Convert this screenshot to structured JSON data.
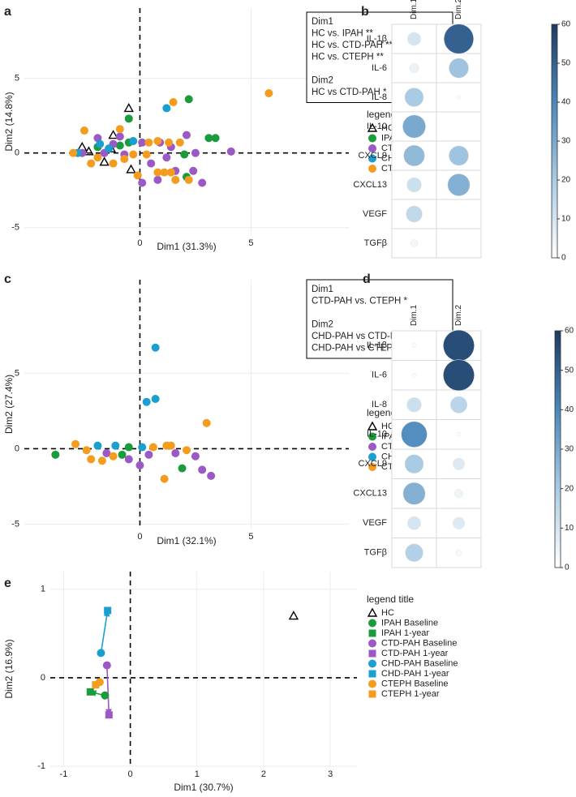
{
  "chart_data": [
    {
      "type": "scatter",
      "label": "a",
      "x_label": "Dim1 (31.3%)",
      "y_label": "Dim2 (14.8%)",
      "xlim": [
        -5.2,
        9.4
      ],
      "ylim": [
        -5.5,
        9.7
      ],
      "xticks": [
        0,
        5
      ],
      "yticks": [
        -5,
        0,
        5
      ],
      "grid": true,
      "zero_lines": true,
      "legend_title": "legend title",
      "legend": "right",
      "annotation": [
        [
          "Dim1",
          "HC vs. IPAH **",
          "HC vs. CTD-PAH ****",
          "HC vs. CTEPH **"
        ],
        [
          "Dim2",
          "HC vs CTD-PAH *"
        ]
      ],
      "series": [
        {
          "name": "HC",
          "color": "#000000",
          "marker": "triangle",
          "x": [
            -0.5,
            -2.6,
            -1.2,
            -1.6,
            -0.4,
            -2.3,
            -1.3
          ],
          "values": [
            3.0,
            0.4,
            1.2,
            -0.6,
            -1.1,
            0.1,
            0.3
          ]
        },
        {
          "name": "IPAH",
          "color": "#1a9c3c",
          "marker": "circle",
          "x": [
            2.2,
            3.1,
            3.4,
            -0.5,
            2.0,
            2.1,
            -0.9,
            -0.5,
            -1.9
          ],
          "values": [
            3.6,
            1.0,
            1.0,
            2.3,
            -0.1,
            -1.6,
            0.5,
            0.7,
            0.4
          ]
        },
        {
          "name": "CTD-PAH",
          "color": "#9b59c6",
          "marker": "circle",
          "x": [
            2.1,
            0.1,
            0.9,
            1.4,
            0.1,
            2.5,
            2.8,
            4.1,
            1.6,
            2.4,
            -0.7,
            -1.2,
            -1.6,
            -1.9,
            -2.6,
            0.5,
            0.8,
            1.2,
            -0.9
          ],
          "values": [
            1.2,
            0.7,
            0.7,
            0.4,
            -2.0,
            0,
            -2.0,
            0.1,
            -1.2,
            -1.2,
            -0.1,
            0.6,
            0,
            1,
            0,
            -0.7,
            -1.8,
            -0.3,
            1.1
          ]
        },
        {
          "name": "CHD-PAH",
          "color": "#1a9fd0",
          "marker": "circle",
          "x": [
            1.2,
            -1.8,
            -1.4,
            -2.8,
            -0.3
          ],
          "values": [
            3.0,
            0.6,
            0.3,
            0,
            0.8
          ]
        },
        {
          "name": "CTEPH",
          "color": "#f39c1e",
          "marker": "circle",
          "x": [
            5.8,
            1.5,
            -2.5,
            -3,
            -0.9,
            0.4,
            0.8,
            1.3,
            1.8,
            0.8,
            1.1,
            1.4,
            1.6,
            2.2,
            -0.1,
            -0.3,
            0.3,
            -1.9,
            -2.2,
            -1.2,
            -0.7
          ],
          "values": [
            4.0,
            3.4,
            1.5,
            0,
            1.6,
            0.7,
            0.8,
            0.7,
            0.7,
            -1.3,
            -1.3,
            -1.3,
            -1.8,
            -1.8,
            -1.5,
            -0.1,
            -0.1,
            -0.3,
            -0.7,
            -0.7,
            -0.4
          ]
        }
      ]
    },
    {
      "type": "heatmap",
      "label": "b",
      "rows": [
        "IL-1β",
        "IL-6",
        "IL-8",
        "IL-10",
        "CXCL9",
        "CXCL13",
        "VEGF",
        "TGFβ"
      ],
      "columns": [
        "Dim.1",
        "Dim.2"
      ],
      "values": [
        [
          10,
          50
        ],
        [
          5,
          22
        ],
        [
          20,
          1
        ],
        [
          30,
          0
        ],
        [
          25,
          22
        ],
        [
          12,
          28
        ],
        [
          15,
          0
        ],
        [
          3,
          0
        ]
      ],
      "zlim": [
        0,
        60
      ],
      "zticks": [
        0,
        10,
        20,
        30,
        40,
        50,
        60
      ],
      "colorscale": [
        "#ffffff",
        "#a9cbe3",
        "#4a87bb",
        "#1d3b62"
      ]
    },
    {
      "type": "scatter",
      "label": "c",
      "x_label": "Dim1 (32.1%)",
      "y_label": "Dim2 (27.4%)",
      "xlim": [
        -5.2,
        9.4
      ],
      "ylim": [
        -5.3,
        11.2
      ],
      "xticks": [
        0,
        5
      ],
      "yticks": [
        -5,
        0,
        5
      ],
      "grid": true,
      "zero_lines": true,
      "legend_title": "legend title",
      "legend": "right",
      "annotation": [
        [
          "Dim1",
          "CTD-PAH vs. CTEPH *"
        ],
        [
          "Dim2",
          "CHD-PAH vs CTD-PAH **",
          "CHD-PAH vs CTEPH *"
        ]
      ],
      "series": [
        {
          "name": "HC",
          "color": "#000000",
          "marker": "triangle",
          "x": [],
          "values": []
        },
        {
          "name": "IPAH",
          "color": "#1a9c3c",
          "marker": "circle",
          "x": [
            -3.8,
            -0.8,
            -0.5,
            1.9
          ],
          "values": [
            -0.4,
            -0.4,
            0.1,
            -1.3
          ]
        },
        {
          "name": "CTD-PAH",
          "color": "#9b59c6",
          "marker": "circle",
          "x": [
            0,
            1.6,
            2.5,
            2.8,
            3.2,
            0.4,
            -0.5,
            -1.5
          ],
          "values": [
            -1.1,
            -0.3,
            -0.5,
            -1.4,
            -1.8,
            -0.4,
            -0.7,
            -0.3
          ]
        },
        {
          "name": "CHD-PAH",
          "color": "#1a9fd0",
          "marker": "circle",
          "x": [
            0.7,
            0.3,
            0.7,
            -1.9,
            -1.1,
            0.1
          ],
          "values": [
            6.7,
            3.1,
            3.3,
            0.2,
            0.2,
            0.1
          ]
        },
        {
          "name": "CTEPH",
          "color": "#f39c1e",
          "marker": "circle",
          "x": [
            3.0,
            1.1,
            -2.9,
            -2.4,
            -1.7,
            -2.2,
            -1.2,
            0.6,
            1.2,
            1.4,
            2.1
          ],
          "values": [
            1.7,
            -2.0,
            0.3,
            -0.1,
            -0.8,
            -0.7,
            -0.5,
            0.1,
            0.2,
            0.2,
            -0.1
          ]
        }
      ]
    },
    {
      "type": "heatmap",
      "label": "d",
      "rows": [
        "IL-1β",
        "IL-6",
        "IL-8",
        "IL-10",
        "CXCL9",
        "CXCL13",
        "VEGF",
        "TGFβ"
      ],
      "columns": [
        "Dim.1",
        "Dim.2"
      ],
      "values": [
        [
          1,
          55
        ],
        [
          1,
          55
        ],
        [
          12,
          16
        ],
        [
          38,
          1
        ],
        [
          20,
          8
        ],
        [
          28,
          4
        ],
        [
          10,
          8
        ],
        [
          18,
          2
        ]
      ],
      "zlim": [
        0,
        60
      ],
      "zticks": [
        0,
        10,
        20,
        30,
        40,
        50,
        60
      ],
      "colorscale": [
        "#ffffff",
        "#a9cbe3",
        "#4a87bb",
        "#1d3b62"
      ]
    },
    {
      "type": "scatter",
      "label": "e",
      "x_label": "Dim1 (30.7%)",
      "y_label": "Dim2 (16.9%)",
      "xlim": [
        -1.2,
        3.4
      ],
      "ylim": [
        -1,
        1.2
      ],
      "xticks": [
        -1,
        0,
        1,
        2,
        3
      ],
      "yticks": [
        -1,
        0,
        1
      ],
      "grid": true,
      "zero_lines": true,
      "legend_title": "legend title",
      "legend": "right",
      "series": [
        {
          "name": "HC",
          "color": "#000000",
          "marker": "triangle",
          "x": [
            2.45
          ],
          "values": [
            0.7
          ]
        },
        {
          "name": "IPAH Baseline",
          "color": "#1a9c3c",
          "marker": "circle",
          "x": [
            -0.38
          ],
          "values": [
            -0.2
          ]
        },
        {
          "name": "IPAH 1-year",
          "color": "#1a9c3c",
          "marker": "square",
          "x": [
            -0.6
          ],
          "values": [
            -0.16
          ]
        },
        {
          "name": "CTD-PAH Baseline",
          "color": "#9b59c6",
          "marker": "circle",
          "x": [
            -0.35
          ],
          "values": [
            0.14
          ]
        },
        {
          "name": "CTD-PAH 1-year",
          "color": "#9b59c6",
          "marker": "square",
          "x": [
            -0.32
          ],
          "values": [
            -0.42
          ]
        },
        {
          "name": "CHD-PAH Baseline",
          "color": "#1a9fd0",
          "marker": "circle",
          "x": [
            -0.44
          ],
          "values": [
            0.28
          ]
        },
        {
          "name": "CHD-PAH 1-year",
          "color": "#1a9fd0",
          "marker": "square",
          "x": [
            -0.34
          ],
          "values": [
            0.76
          ]
        },
        {
          "name": "CTEPH Baseline",
          "color": "#f39c1e",
          "marker": "circle",
          "x": [
            -0.46
          ],
          "values": [
            -0.05
          ]
        },
        {
          "name": "CTEPH 1-year",
          "color": "#f39c1e",
          "marker": "square",
          "x": [
            -0.52
          ],
          "values": [
            -0.08
          ]
        }
      ]
    }
  ]
}
